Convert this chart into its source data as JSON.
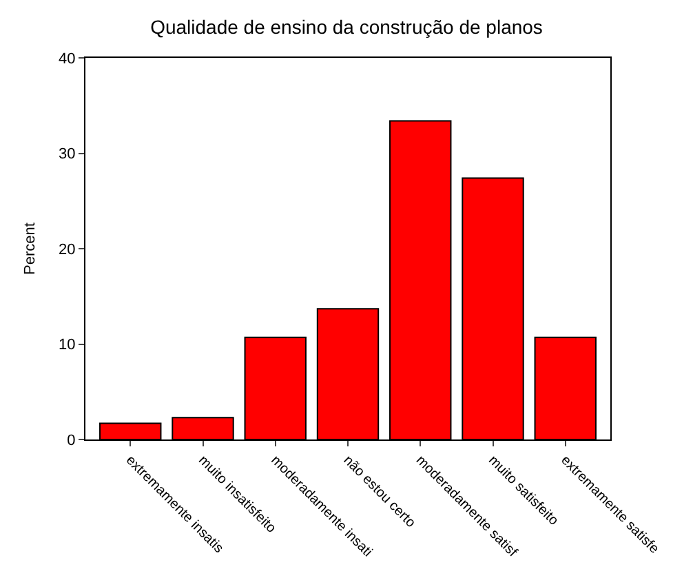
{
  "chart_data": {
    "type": "bar",
    "title": "Qualidade de ensino da construção de planos",
    "ylabel": "Percent",
    "categories": [
      "extremamente insatis",
      "muito insatisfeito",
      "moderadamente insati",
      "não estou certo",
      "moderadamente satisf",
      "muito satisfeito",
      "extremamente satisfe"
    ],
    "values": [
      1.7,
      2.3,
      10.7,
      13.7,
      33.4,
      27.4,
      10.7
    ],
    "color": "#ff0000",
    "ylim": [
      0,
      40
    ],
    "yticks": [
      0,
      10,
      20,
      30,
      40
    ],
    "grid": false
  }
}
